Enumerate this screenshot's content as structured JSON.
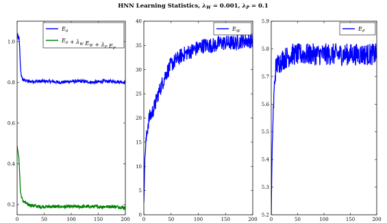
{
  "figure": {
    "title": "HNN Learning Statistics, λ_W = 0.001, λ_P = 0.1"
  },
  "colors": {
    "blue": "#0000ff",
    "green": "#008000"
  },
  "chart_data": [
    {
      "type": "line",
      "xlim": [
        0,
        200
      ],
      "ylim": [
        0.15,
        1.1
      ],
      "xticks": [
        0,
        50,
        100,
        150,
        200
      ],
      "yticks": [
        0.2,
        0.4,
        0.6,
        0.8,
        1.0
      ],
      "xtick_labels": [
        "0",
        "50",
        "100",
        "150",
        "200"
      ],
      "ytick_labels": [
        "0.2",
        "0.4",
        "0.6",
        "0.8",
        "1.0"
      ],
      "legend_position": "top-right",
      "series": [
        {
          "name": "E_0",
          "color": "#0000ff",
          "x": [
            0,
            1,
            2,
            3,
            4,
            5,
            6,
            7,
            8,
            9,
            10,
            12,
            15,
            20,
            30,
            40,
            60,
            80,
            100,
            120,
            140,
            160,
            180,
            200
          ],
          "y": [
            1.02,
            1.04,
            1.01,
            1.03,
            1.0,
            0.95,
            0.88,
            0.85,
            0.83,
            0.82,
            0.815,
            0.81,
            0.81,
            0.805,
            0.805,
            0.805,
            0.805,
            0.8,
            0.805,
            0.805,
            0.8,
            0.805,
            0.805,
            0.8
          ],
          "noise": 0.008
        },
        {
          "name": "E_0 + λ_W E_W + λ_P E_P",
          "color": "#008000",
          "x": [
            0,
            1,
            2,
            3,
            4,
            5,
            6,
            7,
            8,
            9,
            10,
            12,
            15,
            20,
            30,
            40,
            60,
            80,
            100,
            120,
            140,
            160,
            180,
            200
          ],
          "y": [
            0.49,
            0.47,
            0.45,
            0.43,
            0.4,
            0.33,
            0.27,
            0.25,
            0.24,
            0.23,
            0.22,
            0.215,
            0.21,
            0.2,
            0.195,
            0.19,
            0.19,
            0.19,
            0.19,
            0.19,
            0.19,
            0.19,
            0.19,
            0.185
          ],
          "noise": 0.008
        }
      ]
    },
    {
      "type": "line",
      "xlim": [
        0,
        200
      ],
      "ylim": [
        0,
        40
      ],
      "xticks": [
        0,
        50,
        100,
        150,
        200
      ],
      "yticks": [
        0,
        5,
        10,
        15,
        20,
        25,
        30,
        35,
        40
      ],
      "xtick_labels": [
        "0",
        "50",
        "100",
        "150",
        "200"
      ],
      "ytick_labels": [
        "0",
        "5",
        "10",
        "15",
        "20",
        "25",
        "30",
        "35",
        "40"
      ],
      "legend_position": "top-right",
      "series": [
        {
          "name": "E_W",
          "color": "#0000ff",
          "x": [
            0,
            2,
            4,
            6,
            8,
            10,
            15,
            20,
            25,
            30,
            40,
            50,
            60,
            70,
            80,
            90,
            100,
            110,
            120,
            130,
            140,
            150,
            160,
            170,
            180,
            190,
            200
          ],
          "y": [
            3,
            12,
            15,
            17,
            19,
            20,
            21,
            22.5,
            24.5,
            26,
            29,
            31,
            32,
            33,
            33.5,
            34,
            34.5,
            35,
            35,
            35,
            35.5,
            35.5,
            35.5,
            35.5,
            36,
            36,
            36
          ],
          "noise": 1.6
        }
      ]
    },
    {
      "type": "line",
      "xlim": [
        0,
        200
      ],
      "ylim": [
        5.2,
        5.9
      ],
      "xticks": [
        0,
        50,
        100,
        150,
        200
      ],
      "yticks": [
        5.2,
        5.3,
        5.4,
        5.5,
        5.6,
        5.7,
        5.8,
        5.9
      ],
      "xtick_labels": [
        "0",
        "50",
        "100",
        "150",
        "200"
      ],
      "ytick_labels": [
        "5.2",
        "5.3",
        "5.4",
        "5.5",
        "5.6",
        "5.7",
        "5.8",
        "5.9"
      ],
      "legend_position": "top-right",
      "series": [
        {
          "name": "E_P",
          "color": "#0000ff",
          "x": [
            0,
            1,
            2,
            3,
            4,
            5,
            6,
            7,
            8,
            10,
            15,
            20,
            30,
            40,
            60,
            80,
            100,
            120,
            140,
            160,
            180,
            200
          ],
          "y": [
            5.2,
            5.35,
            5.45,
            5.52,
            5.58,
            5.62,
            5.66,
            5.7,
            5.72,
            5.74,
            5.75,
            5.76,
            5.77,
            5.78,
            5.78,
            5.78,
            5.78,
            5.78,
            5.78,
            5.78,
            5.78,
            5.78
          ],
          "noise": 0.04
        }
      ]
    }
  ]
}
